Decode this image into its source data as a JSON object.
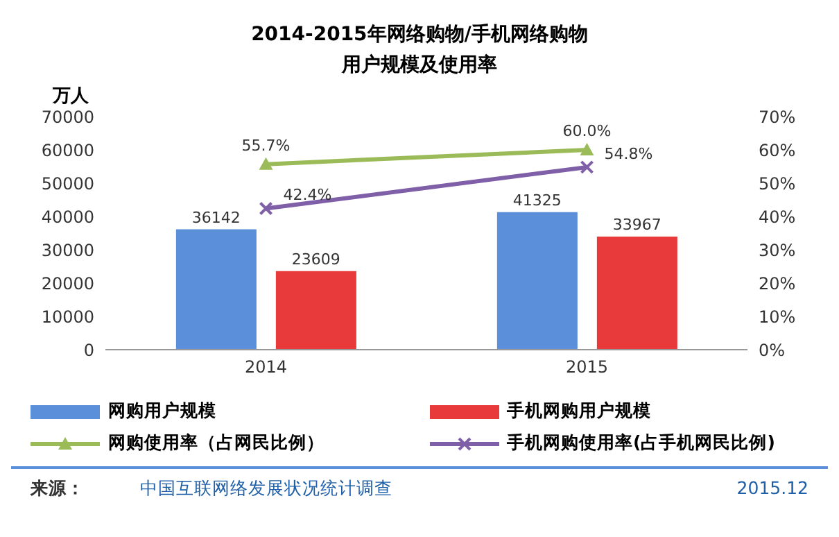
{
  "chart_data": {
    "type": "bar",
    "title": "2014-2015年网络购物/手机网络购物用户规模及使用率",
    "ylabel": "万人",
    "categories": [
      "2014",
      "2015"
    ],
    "series": [
      {
        "name": "网购用户规模",
        "color": "#5b8fd9",
        "values": [
          36142,
          41325
        ]
      },
      {
        "name": "手机网购用户规模",
        "color": "#e8393b",
        "values": [
          23609,
          33967
        ]
      },
      {
        "name": "网购使用率（占网民比例）",
        "type": "line",
        "axis": "y2",
        "color": "#9bbb59",
        "marker": "triangle",
        "values": [
          55.7,
          60.0
        ],
        "value_labels": [
          "55.7%",
          "60.0%"
        ]
      },
      {
        "name": "手机网购使用率(占手机网民比例)",
        "type": "line",
        "axis": "y2",
        "color": "#7f5fa8",
        "marker": "cross",
        "values": [
          42.4,
          54.8
        ],
        "value_labels": [
          "42.4%",
          "54.8%"
        ]
      }
    ],
    "data_labels": true,
    "ylim": [
      0,
      70000
    ],
    "yticks": [
      0,
      10000,
      20000,
      30000,
      40000,
      50000,
      60000,
      70000
    ],
    "y2lim": [
      0,
      70
    ],
    "y2ticks": [
      {
        "value": 0,
        "label": "0%"
      },
      {
        "value": 10,
        "label": "10%"
      },
      {
        "value": 20,
        "label": "20%"
      },
      {
        "value": 30,
        "label": "30%"
      },
      {
        "value": 40,
        "label": "40%"
      },
      {
        "value": 50,
        "label": "50%"
      },
      {
        "value": 60,
        "label": "60%"
      },
      {
        "value": 70,
        "label": "70%"
      }
    ],
    "grid": false,
    "legend": "bottom",
    "annotations": [
      "来源：",
      "中国互联网络发展状况统计调查",
      "2015.12"
    ]
  }
}
